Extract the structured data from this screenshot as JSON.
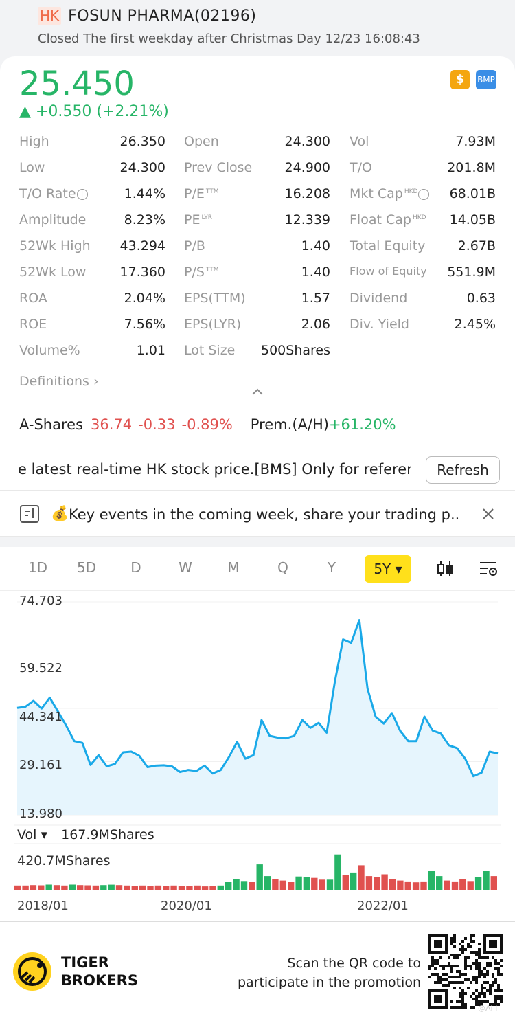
{
  "header": {
    "market_badge": "HK",
    "title": "FOSUN PHARMA(02196)",
    "status": "Closed The first weekday after Christmas Day 12/23 16:08:43"
  },
  "quote": {
    "price": "25.450",
    "change": "▲ +0.550 (+2.21%)",
    "icon_s": "$",
    "icon_bmp": "BMP"
  },
  "stats": {
    "rows": [
      [
        {
          "label": "High",
          "value": "26.350"
        },
        {
          "label": "Open",
          "value": "24.300"
        },
        {
          "label": "Vol",
          "value": "7.93M"
        }
      ],
      [
        {
          "label": "Low",
          "value": "24.300"
        },
        {
          "label": "Prev Close",
          "value": "24.900"
        },
        {
          "label": "T/O",
          "value": "201.8M"
        }
      ],
      [
        {
          "label": "T/O Rate",
          "value": "1.44%"
        },
        {
          "label": "P/E",
          "sup": "TTM",
          "value": "16.208"
        },
        {
          "label": "Mkt Cap",
          "sup": "HKD",
          "value": "68.01B"
        }
      ],
      [
        {
          "label": "Amplitude",
          "value": "8.23%"
        },
        {
          "label": "PE",
          "sup": "LYR",
          "value": "12.339"
        },
        {
          "label": "Float Cap",
          "sup": "HKD",
          "value": "14.05B"
        }
      ],
      [
        {
          "label": "52Wk High",
          "value": "43.294"
        },
        {
          "label": "P/B",
          "value": "1.40"
        },
        {
          "label": "Total Equity",
          "value": "2.67B"
        }
      ],
      [
        {
          "label": "52Wk Low",
          "value": "17.360"
        },
        {
          "label": "P/S",
          "sup": "TTM",
          "value": "1.40"
        },
        {
          "label": "Flow of Equity",
          "value": "551.9M"
        }
      ],
      [
        {
          "label": "ROA",
          "value": "2.04%"
        },
        {
          "label": "EPS(TTM)",
          "value": "1.57"
        },
        {
          "label": "Dividend",
          "value": "0.63"
        }
      ],
      [
        {
          "label": "ROE",
          "value": "7.56%"
        },
        {
          "label": "EPS(LYR)",
          "value": "2.06"
        },
        {
          "label": "Div. Yield",
          "value": "2.45%"
        }
      ],
      [
        {
          "label": "Volume%",
          "value": "1.01"
        },
        {
          "label": "Lot Size",
          "value": "500Shares"
        }
      ]
    ],
    "info_glyph": "i",
    "definitions_link": "Definitions ›"
  },
  "ashares": {
    "label": "A-Shares",
    "price": "36.74",
    "change": "-0.33",
    "pct": "-0.89%",
    "premium_label": "Prem.(A/H)",
    "premium_value": "+61.20%"
  },
  "banner": {
    "text": "e latest real-time HK stock price.[BMS] Only for referer",
    "refresh_label": "Refresh"
  },
  "events": {
    "emoji": "💰",
    "text": "Key events in the coming week, share your trading p..."
  },
  "tabs": {
    "items": [
      "1D",
      "5D",
      "D",
      "W",
      "M",
      "Q",
      "Y"
    ],
    "active": "5Y ▾"
  },
  "colors": {
    "up": "#27b567",
    "down": "#e0514f",
    "line": "#1aa9e8",
    "active_tab": "#ffe01b"
  },
  "chart_data": {
    "type": "line",
    "y_ticks": [
      "74.703",
      "59.522",
      "44.341",
      "29.161",
      "13.980"
    ],
    "ylim": [
      13.98,
      74.703
    ],
    "x_ticks": [
      "2018/01",
      "2020/01",
      "2022/01"
    ],
    "price_series": [
      44.5,
      44.8,
      46.5,
      44.3,
      47.4,
      43.5,
      39.5,
      35.0,
      34.5,
      28.2,
      31.0,
      27.8,
      28.5,
      31.8,
      32.0,
      30.8,
      27.6,
      28.0,
      28.1,
      27.8,
      26.2,
      26.8,
      26.5,
      28.0,
      25.8,
      26.8,
      30.5,
      34.8,
      30.0,
      31.0,
      41.0,
      36.5,
      36.0,
      35.8,
      36.5,
      41.0,
      38.8,
      40.2,
      37.4,
      52.0,
      64.0,
      63.0,
      69.5,
      50.0,
      42.0,
      40.0,
      43.0,
      38.0,
      35.0,
      35.0,
      42.0,
      38.0,
      37.2,
      33.8,
      33.0,
      30.0,
      25.0,
      26.0,
      32.0,
      31.5
    ],
    "volume_label": "Vol ▾",
    "volume_current": "167.9MShares",
    "volume_max_label": "420.7MShares",
    "volume_max": 420.7,
    "volume_series": [
      55,
      55,
      60,
      57,
      65,
      60,
      55,
      65,
      60,
      57,
      55,
      60,
      64,
      60,
      55,
      52,
      55,
      50,
      55,
      52,
      55,
      50,
      50,
      55,
      45,
      50,
      55,
      95,
      125,
      105,
      95,
      290,
      160,
      130,
      110,
      95,
      155,
      150,
      140,
      120,
      120,
      400,
      170,
      200,
      280,
      160,
      150,
      180,
      130,
      110,
      100,
      90,
      100,
      220,
      160,
      110,
      100,
      125,
      105,
      150,
      215,
      160
    ],
    "volume_up": [
      false,
      false,
      false,
      false,
      true,
      false,
      false,
      true,
      false,
      false,
      false,
      true,
      true,
      false,
      false,
      false,
      false,
      false,
      false,
      false,
      false,
      false,
      false,
      false,
      false,
      false,
      true,
      true,
      true,
      true,
      false,
      true,
      true,
      false,
      false,
      false,
      true,
      true,
      false,
      false,
      true,
      true,
      false,
      true,
      false,
      false,
      false,
      false,
      false,
      false,
      false,
      false,
      false,
      true,
      true,
      false,
      false,
      false,
      false,
      true,
      true,
      false
    ]
  },
  "footer": {
    "brand_line1": "TIGER",
    "brand_line2": "BROKERS",
    "scan_line1": "Scan the QR code to",
    "scan_line2": "participate in the promotion",
    "watermark": "@Ai I"
  }
}
